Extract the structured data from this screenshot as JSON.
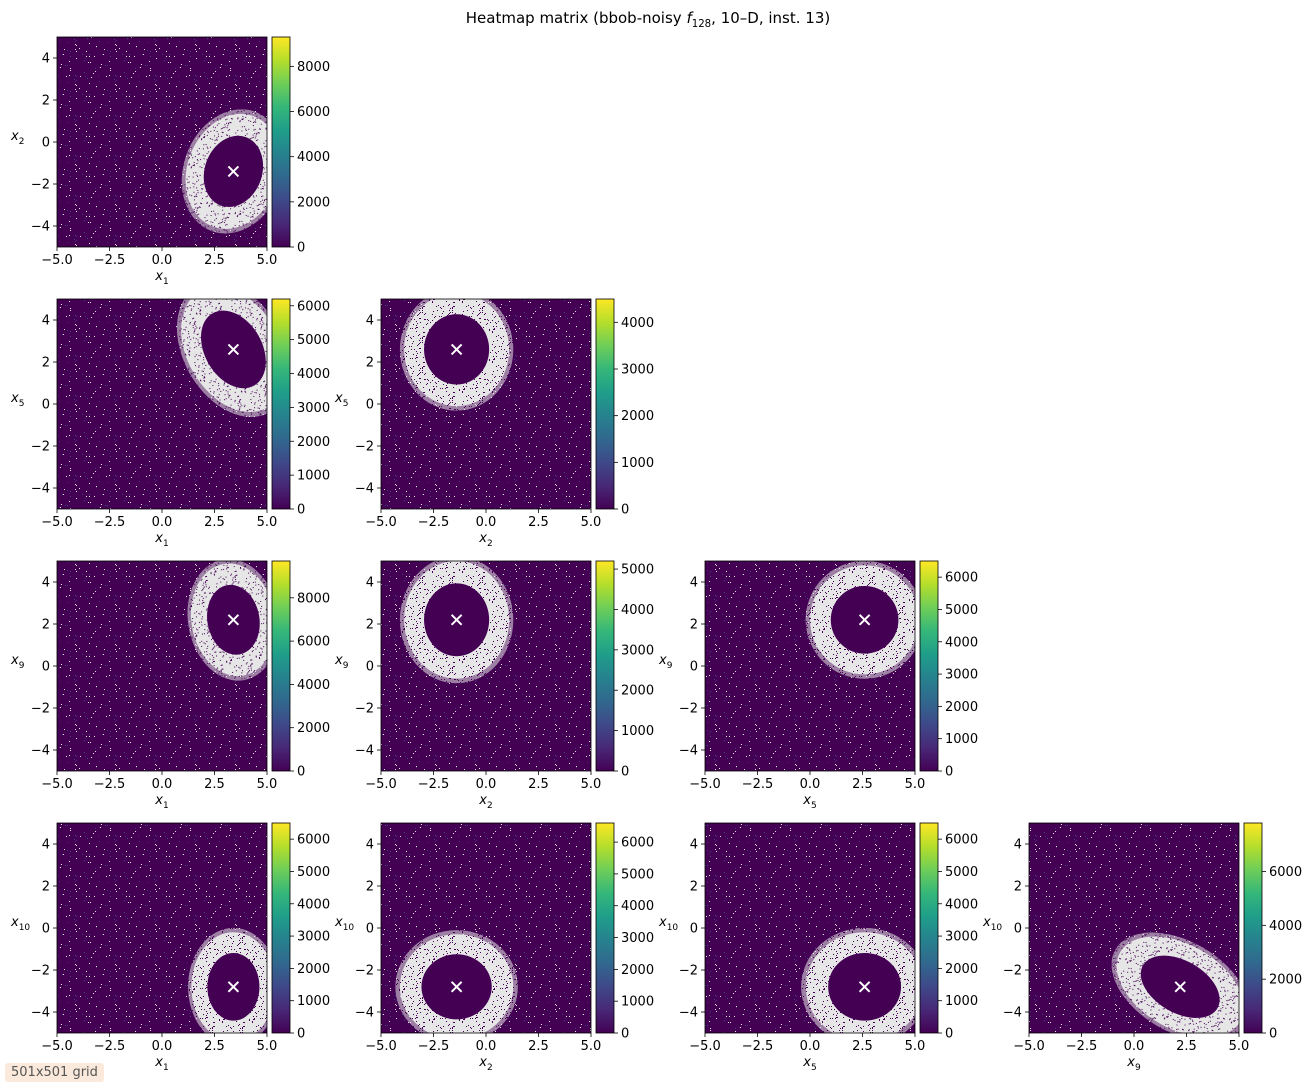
{
  "title": {
    "prefix": "Heatmap matrix (bbob-noisy ",
    "func": "f",
    "func_sub": "128",
    "suffix": ", 10–D, inst. 13)"
  },
  "badge": "501x501 grid",
  "colors": {
    "viridis": [
      "#440154",
      "#482878",
      "#3e4989",
      "#31688e",
      "#26828e",
      "#1f9e89",
      "#35b779",
      "#6ece58",
      "#b5de2b",
      "#fde725"
    ],
    "ring": "#e6e6e6",
    "marker": "#ffffff"
  },
  "axis_ticks": [
    "−5.0",
    "−2.5",
    "0.0",
    "2.5",
    "5.0"
  ],
  "axis_tick_values": [
    -5,
    -2.5,
    0,
    2.5,
    5
  ],
  "y_ticks": [
    "−4",
    "−2",
    "0",
    "2",
    "4"
  ],
  "y_tick_values": [
    -4,
    -2,
    0,
    2,
    4
  ],
  "chart_data": [
    {
      "type": "heatmap",
      "xlabel": "x",
      "xsub": "1",
      "ylabel": "x",
      "ysub": "2",
      "row": 0,
      "col": 0,
      "marker": [
        3.4,
        -1.4
      ],
      "xlim": [
        -5,
        5
      ],
      "ylim": [
        -5,
        5
      ],
      "ring": {
        "rx": 2.2,
        "ry": 2.8,
        "angle": 20
      },
      "colorbar": {
        "ticks": [
          "0",
          "2000",
          "4000",
          "6000",
          "8000"
        ],
        "values": [
          0,
          2000,
          4000,
          6000,
          8000
        ],
        "max": 9300
      }
    },
    {
      "type": "heatmap",
      "xlabel": "x",
      "xsub": "1",
      "ylabel": "x",
      "ysub": "5",
      "row": 1,
      "col": 0,
      "marker": [
        3.4,
        2.6
      ],
      "xlim": [
        -5,
        5
      ],
      "ylim": [
        -5,
        5
      ],
      "ring": {
        "rx": 2.2,
        "ry": 3.2,
        "angle": -30
      },
      "colorbar": {
        "ticks": [
          "0",
          "1000",
          "2000",
          "3000",
          "4000",
          "5000",
          "6000"
        ],
        "values": [
          0,
          1000,
          2000,
          3000,
          4000,
          5000,
          6000
        ],
        "max": 6200
      }
    },
    {
      "type": "heatmap",
      "xlabel": "x",
      "xsub": "2",
      "ylabel": "x",
      "ysub": "5",
      "row": 1,
      "col": 1,
      "marker": [
        -1.4,
        2.6
      ],
      "xlim": [
        -5,
        5
      ],
      "ylim": [
        -5,
        5
      ],
      "ring": {
        "rx": 2.5,
        "ry": 2.7,
        "angle": 0
      },
      "colorbar": {
        "ticks": [
          "0",
          "1000",
          "2000",
          "3000",
          "4000"
        ],
        "values": [
          0,
          1000,
          2000,
          3000,
          4000
        ],
        "max": 4500
      }
    },
    {
      "type": "heatmap",
      "xlabel": "x",
      "xsub": "1",
      "ylabel": "x",
      "ysub": "9",
      "row": 2,
      "col": 0,
      "marker": [
        3.4,
        2.2
      ],
      "xlim": [
        -5,
        5
      ],
      "ylim": [
        -5,
        5
      ],
      "ring": {
        "rx": 2.0,
        "ry": 2.7,
        "angle": -10
      },
      "colorbar": {
        "ticks": [
          "0",
          "2000",
          "4000",
          "6000",
          "8000"
        ],
        "values": [
          0,
          2000,
          4000,
          6000,
          8000
        ],
        "max": 9700
      }
    },
    {
      "type": "heatmap",
      "xlabel": "x",
      "xsub": "2",
      "ylabel": "x",
      "ysub": "9",
      "row": 2,
      "col": 1,
      "marker": [
        -1.4,
        2.2
      ],
      "xlim": [
        -5,
        5
      ],
      "ylim": [
        -5,
        5
      ],
      "ring": {
        "rx": 2.5,
        "ry": 2.8,
        "angle": 0
      },
      "colorbar": {
        "ticks": [
          "0",
          "1000",
          "2000",
          "3000",
          "4000",
          "5000"
        ],
        "values": [
          0,
          1000,
          2000,
          3000,
          4000,
          5000
        ],
        "max": 5200
      }
    },
    {
      "type": "heatmap",
      "xlabel": "x",
      "xsub": "5",
      "ylabel": "x",
      "ysub": "9",
      "row": 2,
      "col": 2,
      "marker": [
        2.6,
        2.2
      ],
      "xlim": [
        -5,
        5
      ],
      "ylim": [
        -5,
        5
      ],
      "ring": {
        "rx": 2.6,
        "ry": 2.6,
        "angle": 0
      },
      "colorbar": {
        "ticks": [
          "0",
          "1000",
          "2000",
          "3000",
          "4000",
          "5000",
          "6000"
        ],
        "values": [
          0,
          1000,
          2000,
          3000,
          4000,
          5000,
          6000
        ],
        "max": 6500
      }
    },
    {
      "type": "heatmap",
      "xlabel": "x",
      "xsub": "1",
      "ylabel": "x",
      "ysub": "10",
      "row": 3,
      "col": 0,
      "marker": [
        3.4,
        -2.8
      ],
      "xlim": [
        -5,
        5
      ],
      "ylim": [
        -5,
        5
      ],
      "ring": {
        "rx": 2.0,
        "ry": 2.6,
        "angle": 0
      },
      "colorbar": {
        "ticks": [
          "0",
          "1000",
          "2000",
          "3000",
          "4000",
          "5000",
          "6000"
        ],
        "values": [
          0,
          1000,
          2000,
          3000,
          4000,
          5000,
          6000
        ],
        "max": 6500
      }
    },
    {
      "type": "heatmap",
      "xlabel": "x",
      "xsub": "2",
      "ylabel": "x",
      "ysub": "10",
      "row": 3,
      "col": 1,
      "marker": [
        -1.4,
        -2.8
      ],
      "xlim": [
        -5,
        5
      ],
      "ylim": [
        -5,
        5
      ],
      "ring": {
        "rx": 2.7,
        "ry": 2.5,
        "angle": 0
      },
      "colorbar": {
        "ticks": [
          "0",
          "1000",
          "2000",
          "3000",
          "4000",
          "5000",
          "6000"
        ],
        "values": [
          0,
          1000,
          2000,
          3000,
          4000,
          5000,
          6000
        ],
        "max": 6600
      }
    },
    {
      "type": "heatmap",
      "xlabel": "x",
      "xsub": "5",
      "ylabel": "x",
      "ysub": "10",
      "row": 3,
      "col": 2,
      "marker": [
        2.6,
        -2.8
      ],
      "xlim": [
        -5,
        5
      ],
      "ylim": [
        -5,
        5
      ],
      "ring": {
        "rx": 2.8,
        "ry": 2.6,
        "angle": 0
      },
      "colorbar": {
        "ticks": [
          "0",
          "1000",
          "2000",
          "3000",
          "4000",
          "5000",
          "6000"
        ],
        "values": [
          0,
          1000,
          2000,
          3000,
          4000,
          5000,
          6000
        ],
        "max": 6500
      }
    },
    {
      "type": "heatmap",
      "xlabel": "x",
      "xsub": "9",
      "ylabel": "x",
      "ysub": "10",
      "row": 3,
      "col": 3,
      "marker": [
        2.2,
        -2.8
      ],
      "xlim": [
        -5,
        5
      ],
      "ylim": [
        -5,
        5
      ],
      "ring": {
        "rx": 3.3,
        "ry": 2.0,
        "angle": 30
      },
      "colorbar": {
        "ticks": [
          "0",
          "2000",
          "4000",
          "6000"
        ],
        "values": [
          0,
          2000,
          4000,
          6000
        ],
        "max": 7800
      }
    }
  ]
}
